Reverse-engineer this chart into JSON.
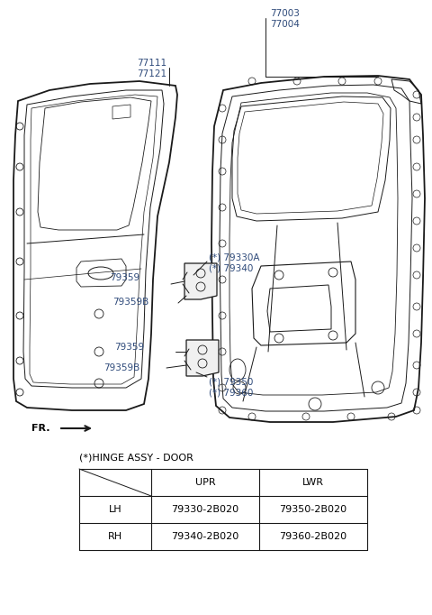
{
  "bg_color": "#ffffff",
  "line_color": "#1a1a1a",
  "label_color": "#2e4a7a",
  "table_title": "(*)HINGE ASSY - DOOR",
  "table_headers": [
    "",
    "UPR",
    "LWR"
  ],
  "table_rows": [
    [
      "LH",
      "79330-2B020",
      "79350-2B020"
    ],
    [
      "RH",
      "79340-2B020",
      "79360-2B020"
    ]
  ]
}
